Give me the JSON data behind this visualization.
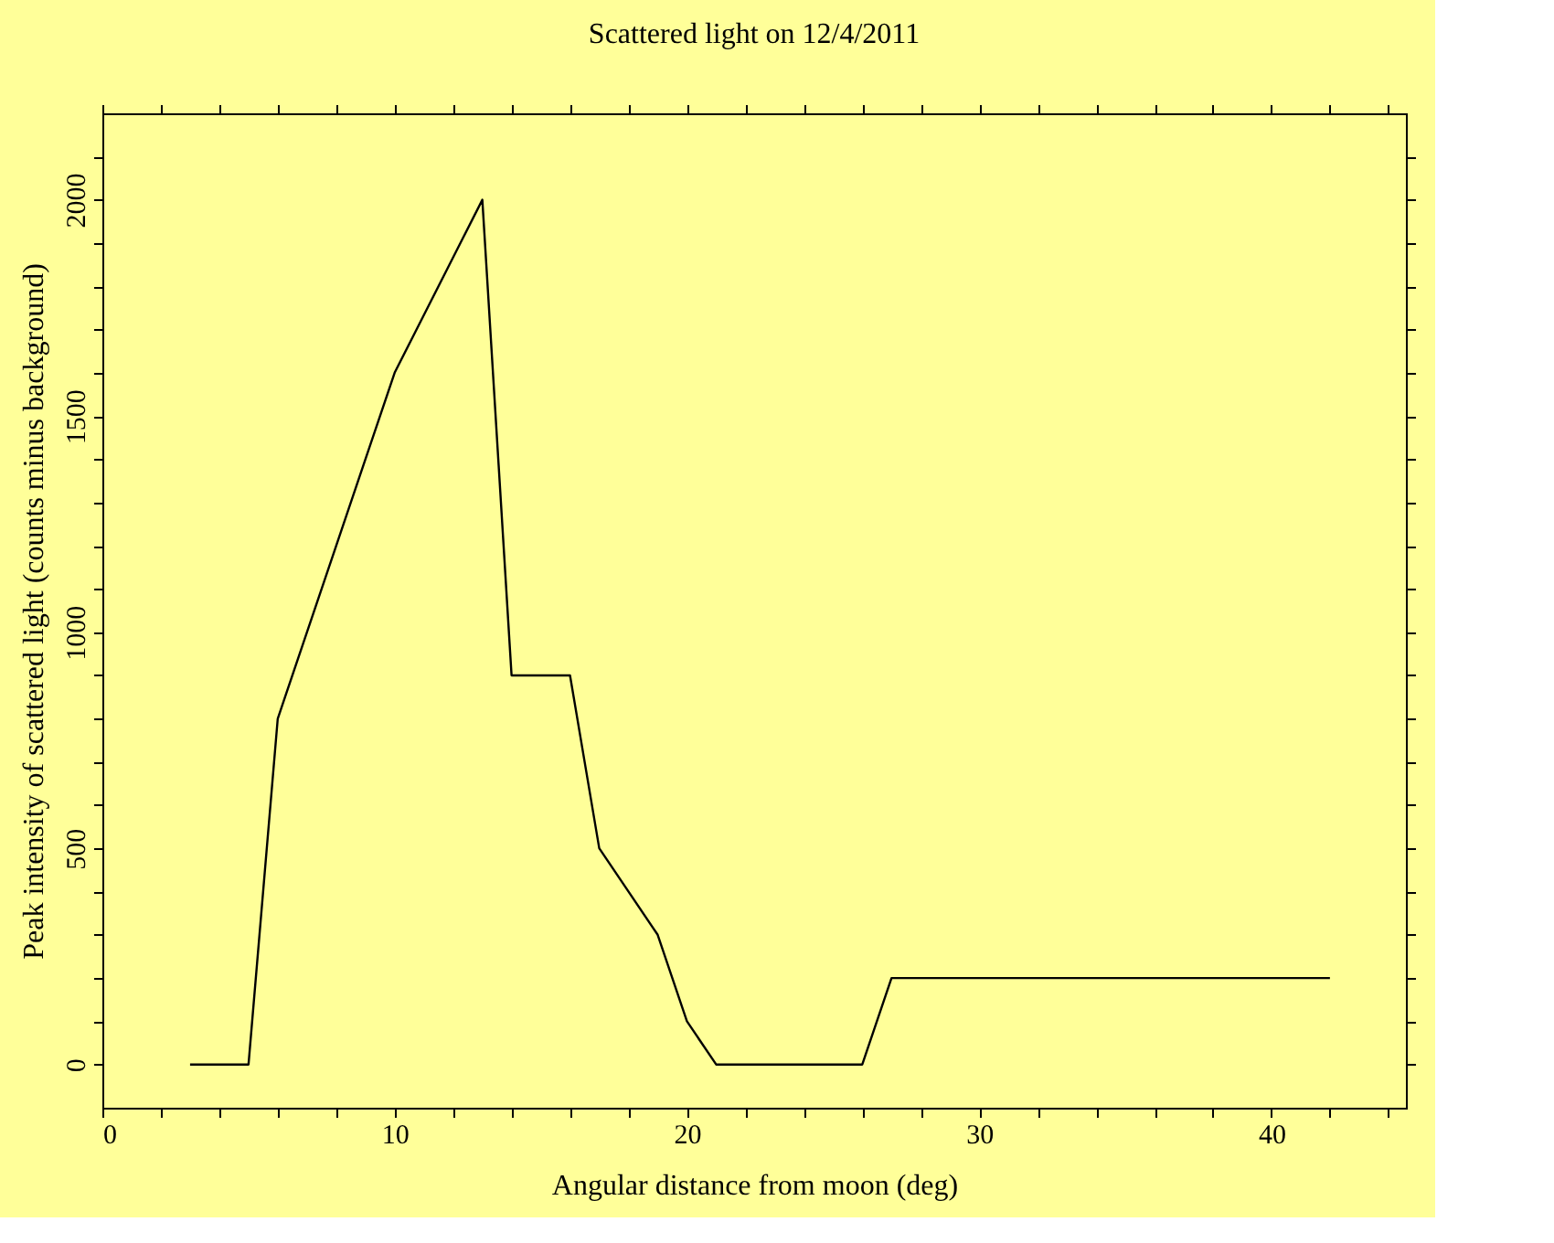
{
  "chart_data": {
    "type": "line",
    "title": "Scattered light on 12/4/2011",
    "xlabel": "Angular distance from moon (deg)",
    "ylabel": "Peak intensity of scattered light (counts minus background)",
    "x": [
      3,
      5,
      6,
      8,
      10,
      13,
      14,
      16,
      17,
      19,
      20,
      21,
      26,
      27,
      42
    ],
    "series": [
      {
        "color": "#000000",
        "values": [
          0,
          0,
          800,
          1200,
          1600,
          2000,
          900,
          900,
          500,
          300,
          100,
          0,
          0,
          200,
          200
        ]
      }
    ],
    "xlim": [
      0,
      44.6
    ],
    "ylim": [
      -100,
      2200
    ],
    "xticks": [
      0,
      {
        "value": 2,
        "label": null
      },
      {
        "value": 4,
        "label": null
      },
      {
        "value": 6,
        "label": null
      },
      {
        "value": 8,
        "label": null
      },
      10,
      {
        "value": 12,
        "label": null
      },
      {
        "value": 14,
        "label": null
      },
      {
        "value": 16,
        "label": null
      },
      {
        "value": 18,
        "label": null
      },
      20,
      {
        "value": 22,
        "label": null
      },
      {
        "value": 24,
        "label": null
      },
      {
        "value": 26,
        "label": null
      },
      {
        "value": 28,
        "label": null
      },
      30,
      {
        "value": 32,
        "label": null
      },
      {
        "value": 34,
        "label": null
      },
      {
        "value": 36,
        "label": null
      },
      {
        "value": 38,
        "label": null
      },
      40,
      {
        "value": 42,
        "label": null
      },
      {
        "value": 44,
        "label": null
      }
    ],
    "yticks": [
      0,
      {
        "value": 100,
        "label": null
      },
      {
        "value": 200,
        "label": null
      },
      {
        "value": 300,
        "label": null
      },
      {
        "value": 400,
        "label": null
      },
      500,
      {
        "value": 600,
        "label": null
      },
      {
        "value": 700,
        "label": null
      },
      {
        "value": 800,
        "label": null
      },
      {
        "value": 900,
        "label": null
      },
      1000,
      {
        "value": 1100,
        "label": null
      },
      {
        "value": 1200,
        "label": null
      },
      {
        "value": 1300,
        "label": null
      },
      {
        "value": 1400,
        "label": null
      },
      1500,
      {
        "value": 1600,
        "label": null
      },
      {
        "value": 1700,
        "label": null
      },
      {
        "value": 1800,
        "label": null
      },
      {
        "value": 1900,
        "label": null
      },
      2000,
      {
        "value": 2100,
        "label": null
      }
    ],
    "grid": false,
    "marker": "none",
    "line_style": "solid"
  }
}
